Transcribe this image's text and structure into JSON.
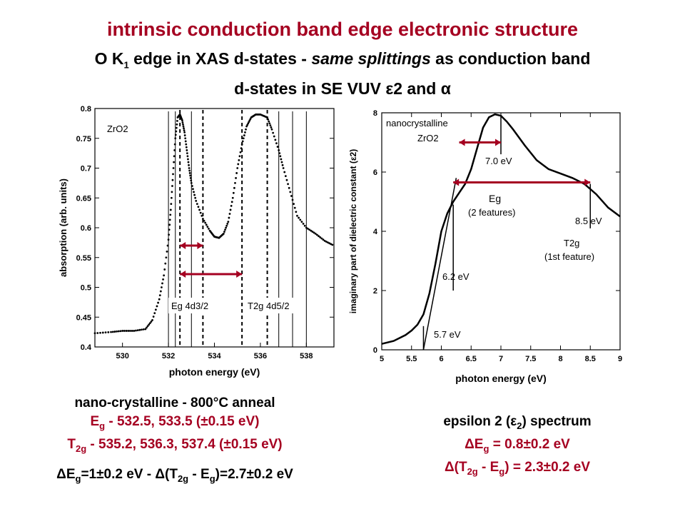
{
  "header": {
    "title": "intrinsic conduction band edge electronic structure",
    "line2_a": "O K",
    "line2_sub": "1",
    "line2_b": " edge in XAS d-states - ",
    "line2_italic": "same splittings",
    "line2_c": "  as conduction band",
    "line3": "d-states in SE VUV ε2 and α"
  },
  "chart_data": [
    {
      "type": "scatter",
      "xlabel": "photon energy (eV)",
      "ylabel": "absorption (arb. units)",
      "xlim": [
        528.8,
        539.2
      ],
      "ylim": [
        0.4,
        0.8
      ],
      "xticks": [
        "530",
        "532",
        "534",
        "536",
        "538"
      ],
      "yticks": [
        "0.4",
        "0.45",
        "0.5",
        "0.55",
        "0.6",
        "0.65",
        "0.7",
        "0.75",
        "0.8"
      ],
      "series": [
        {
          "name": "",
          "x": [
            528.8,
            529.5,
            530.0,
            530.5,
            531.0,
            531.3,
            531.6,
            531.8,
            532.0,
            532.1,
            532.2,
            532.3,
            532.4,
            532.5,
            532.6,
            532.7,
            532.8,
            532.9,
            533.0,
            533.2,
            533.5,
            533.8,
            534.0,
            534.2,
            534.4,
            534.6,
            534.8,
            535.0,
            535.2,
            535.4,
            535.6,
            535.8,
            536.0,
            536.3,
            536.5,
            536.8,
            537.0,
            537.3,
            537.6,
            538.0,
            538.4,
            538.8,
            539.2
          ],
          "y": [
            0.423,
            0.425,
            0.427,
            0.427,
            0.43,
            0.445,
            0.48,
            0.52,
            0.58,
            0.63,
            0.69,
            0.75,
            0.785,
            0.79,
            0.78,
            0.76,
            0.73,
            0.7,
            0.675,
            0.645,
            0.615,
            0.595,
            0.585,
            0.583,
            0.59,
            0.61,
            0.65,
            0.7,
            0.74,
            0.77,
            0.785,
            0.79,
            0.79,
            0.785,
            0.765,
            0.73,
            0.7,
            0.66,
            0.62,
            0.6,
            0.59,
            0.578,
            0.57
          ]
        }
      ],
      "annotations": [
        "ZrO2",
        "Eg 4d3/2",
        "T2g 4d5/2"
      ]
    },
    {
      "type": "line",
      "xlabel": "photon energy (eV)",
      "ylabel": "imaginary part of dielectric constant (ε2)",
      "xlim": [
        5,
        9
      ],
      "ylim": [
        0,
        8
      ],
      "xticks": [
        "5",
        "5.5",
        "6",
        "6.5",
        "7",
        "7.5",
        "8",
        "8.5",
        "9"
      ],
      "yticks": [
        "0",
        "2",
        "4",
        "6",
        "8"
      ],
      "series": [
        {
          "name": "",
          "x": [
            5.0,
            5.2,
            5.4,
            5.5,
            5.6,
            5.7,
            5.8,
            5.9,
            6.0,
            6.1,
            6.2,
            6.3,
            6.4,
            6.5,
            6.6,
            6.7,
            6.8,
            6.9,
            7.0,
            7.1,
            7.2,
            7.4,
            7.6,
            7.8,
            8.0,
            8.2,
            8.4,
            8.6,
            8.8,
            9.0
          ],
          "y": [
            0.2,
            0.3,
            0.5,
            0.65,
            0.85,
            1.2,
            1.9,
            2.9,
            4.0,
            4.6,
            5.0,
            5.3,
            5.6,
            6.1,
            6.8,
            7.5,
            7.85,
            7.95,
            7.9,
            7.7,
            7.45,
            6.9,
            6.4,
            6.1,
            5.95,
            5.8,
            5.6,
            5.25,
            4.8,
            4.5
          ]
        }
      ],
      "annotations": [
        "nanocrystalline",
        "ZrO2",
        "7.0 eV",
        "Eg",
        "(2 features)",
        "8.5 eV",
        "T2g",
        "(1st feature)",
        "6.2 eV",
        "5.7 eV"
      ]
    }
  ],
  "left_caption": {
    "line1": "nano-crystalline - 800°C anneal",
    "line2_a": "E",
    "line2_sub": "g",
    "line2_b": " - 532.5, 533.5 (±0.15 eV)",
    "line3_a": "T",
    "line3_sub": "2g",
    "line3_b": " - 535.2, 536.3, 537.4 (±0.15 eV)",
    "line4_a": "ΔE",
    "line4_sub1": "g",
    "line4_b": "=1±0.2 eV - Δ(T",
    "line4_sub2": "2g",
    "line4_c": " - E",
    "line4_sub3": "g",
    "line4_d": ")=2.7±0.2 eV"
  },
  "right_caption": {
    "line1_a": "epsilon 2 (ε",
    "line1_sub": "2",
    "line1_b": ") spectrum",
    "line2_a": "ΔE",
    "line2_sub": "g",
    "line2_b": " = 0.8±0.2 eV",
    "line3_a": "Δ(T",
    "line3_sub1": "2g",
    "line3_b": " - E",
    "line3_sub2": "g",
    "line3_c": ") = 2.3±0.2 eV"
  },
  "colors": {
    "accent": "#a50021",
    "text": "#000000"
  }
}
